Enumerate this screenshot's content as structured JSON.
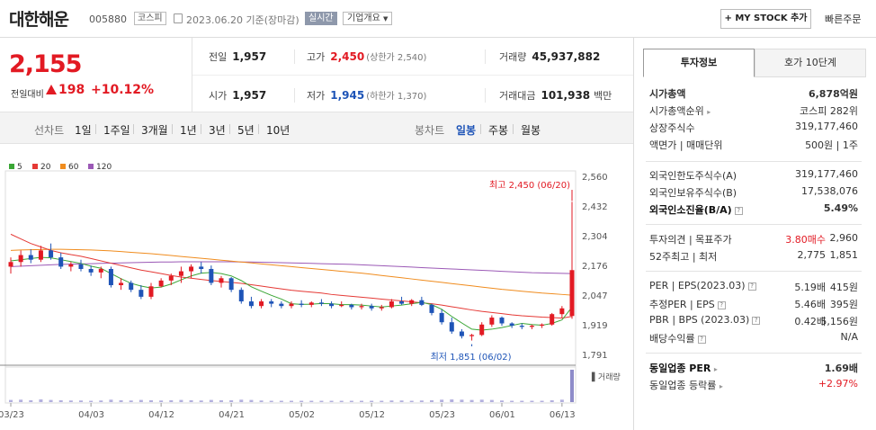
{
  "header": {
    "name": "대한해운",
    "code": "005880",
    "market": "코스피",
    "date": "2023.06.20 기준(장마감)",
    "realtime": "실시간",
    "company_info": "기업개요",
    "mystock": "+ MY STOCK 추가",
    "quick_order": "빠른주문"
  },
  "price": {
    "current": "2,155",
    "diff_label": "전일대비",
    "diff": "198",
    "diff_pct": "+10.12%"
  },
  "stats": {
    "prev_label": "전일",
    "prev": "1,957",
    "high_label": "고가",
    "high": "2,450",
    "upper": "(상한가 2,540)",
    "vol_label": "거래량",
    "vol": "45,937,882",
    "open_label": "시가",
    "open": "1,957",
    "low_label": "저가",
    "low": "1,945",
    "lower": "(하한가 1,370)",
    "amt_label": "거래대금",
    "amt": "101,938",
    "amt_unit": "백만"
  },
  "toolbar": {
    "line_label": "선차트",
    "line_items": [
      "1일",
      "1주일",
      "3개월",
      "1년",
      "3년",
      "5년",
      "10년"
    ],
    "candle_label": "봉차트",
    "candle_items": [
      "일봉",
      "주봉",
      "월봉"
    ]
  },
  "chart_data": {
    "type": "candlestick",
    "legend": [
      {
        "name": "5",
        "color": "#3aa635"
      },
      {
        "name": "20",
        "color": "#e53935"
      },
      {
        "name": "60",
        "color": "#f08c1e"
      },
      {
        "name": "120",
        "color": "#9b59b6"
      }
    ],
    "y_ticks": [
      "2,560",
      "2,432",
      "2,304",
      "2,176",
      "2,047",
      "1,919",
      "1,791"
    ],
    "ylim": [
      1791,
      2560
    ],
    "x_labels": [
      "03/23",
      "04/03",
      "04/12",
      "04/21",
      "05/02",
      "05/12",
      "05/23",
      "06/01",
      "06/13"
    ],
    "high_note": "최고 2,450 (06/20)",
    "low_note": "최저 1,851 (06/02)",
    "volume_label": "거래량",
    "candles": [
      [
        2170,
        2210,
        2140,
        2190
      ],
      [
        2190,
        2240,
        2170,
        2220
      ],
      [
        2220,
        2245,
        2185,
        2200
      ],
      [
        2200,
        2260,
        2190,
        2240
      ],
      [
        2240,
        2270,
        2200,
        2210
      ],
      [
        2210,
        2230,
        2160,
        2170
      ],
      [
        2170,
        2190,
        2150,
        2180
      ],
      [
        2180,
        2200,
        2150,
        2160
      ],
      [
        2160,
        2175,
        2130,
        2145
      ],
      [
        2145,
        2170,
        2120,
        2160
      ],
      [
        2160,
        2170,
        2080,
        2090
      ],
      [
        2090,
        2120,
        2070,
        2100
      ],
      [
        2100,
        2110,
        2060,
        2070
      ],
      [
        2070,
        2090,
        2030,
        2040
      ],
      [
        2040,
        2100,
        2030,
        2085
      ],
      [
        2085,
        2120,
        2080,
        2110
      ],
      [
        2110,
        2140,
        2090,
        2130
      ],
      [
        2130,
        2170,
        2100,
        2150
      ],
      [
        2150,
        2180,
        2120,
        2170
      ],
      [
        2170,
        2190,
        2140,
        2160
      ],
      [
        2160,
        2175,
        2090,
        2100
      ],
      [
        2100,
        2130,
        2080,
        2120
      ],
      [
        2120,
        2125,
        2060,
        2070
      ],
      [
        2070,
        2080,
        2010,
        2020
      ],
      [
        2020,
        2040,
        1990,
        2000
      ],
      [
        2000,
        2030,
        1990,
        2020
      ],
      [
        2020,
        2030,
        1995,
        2010
      ],
      [
        2010,
        2020,
        1990,
        2000
      ],
      [
        2000,
        2020,
        1990,
        2010
      ],
      [
        2010,
        2025,
        1995,
        2005
      ],
      [
        2005,
        2020,
        1995,
        2015
      ],
      [
        2015,
        2030,
        2000,
        2010
      ],
      [
        2010,
        2020,
        1990,
        2000
      ],
      [
        2000,
        2020,
        1995,
        2005
      ],
      [
        2005,
        2010,
        1985,
        1995
      ],
      [
        1995,
        2010,
        1985,
        2000
      ],
      [
        2000,
        2010,
        1980,
        1990
      ],
      [
        1990,
        2005,
        1980,
        1995
      ],
      [
        1995,
        2030,
        1990,
        2020
      ],
      [
        2020,
        2040,
        2005,
        2010
      ],
      [
        2010,
        2030,
        2000,
        2025
      ],
      [
        2025,
        2040,
        2000,
        2005
      ],
      [
        2005,
        2010,
        1960,
        1970
      ],
      [
        1970,
        1985,
        1920,
        1930
      ],
      [
        1930,
        1950,
        1880,
        1890
      ],
      [
        1890,
        1900,
        1860,
        1870
      ],
      [
        1870,
        1880,
        1851,
        1875
      ],
      [
        1875,
        1930,
        1870,
        1920
      ],
      [
        1920,
        1960,
        1910,
        1950
      ],
      [
        1950,
        1955,
        1915,
        1925
      ],
      [
        1925,
        1930,
        1905,
        1915
      ],
      [
        1915,
        1925,
        1900,
        1910
      ],
      [
        1910,
        1920,
        1900,
        1915
      ],
      [
        1915,
        1925,
        1905,
        1920
      ],
      [
        1920,
        1970,
        1915,
        1965
      ],
      [
        1965,
        2000,
        1950,
        1990
      ],
      [
        1957,
        2450,
        1945,
        2155
      ]
    ],
    "volumes": [
      8,
      9,
      7,
      10,
      8,
      7,
      6,
      6,
      5,
      6,
      9,
      7,
      6,
      8,
      7,
      6,
      7,
      8,
      7,
      6,
      8,
      7,
      7,
      9,
      8,
      6,
      5,
      5,
      5,
      5,
      5,
      5,
      5,
      5,
      5,
      5,
      5,
      5,
      6,
      6,
      5,
      6,
      7,
      9,
      10,
      9,
      8,
      9,
      8,
      6,
      5,
      5,
      5,
      5,
      7,
      9,
      120
    ],
    "ma5": [
      2195,
      2200,
      2205,
      2210,
      2208,
      2200,
      2192,
      2184,
      2172,
      2163,
      2140,
      2118,
      2098,
      2086,
      2078,
      2082,
      2095,
      2113,
      2130,
      2142,
      2145,
      2140,
      2130,
      2110,
      2083,
      2064,
      2046,
      2030,
      2010,
      2007,
      2008,
      2011,
      2010,
      2006,
      2006,
      2004,
      2000,
      1996,
      2000,
      2004,
      2010,
      2016,
      2006,
      1986,
      1955,
      1927,
      1900,
      1896,
      1900,
      1907,
      1916,
      1925,
      1920,
      1917,
      1925,
      1940,
      1995
    ],
    "ma20": [
      2310,
      2290,
      2270,
      2255,
      2240,
      2230,
      2222,
      2215,
      2205,
      2195,
      2185,
      2175,
      2165,
      2155,
      2148,
      2140,
      2132,
      2125,
      2120,
      2115,
      2110,
      2106,
      2102,
      2098,
      2092,
      2086,
      2080,
      2074,
      2068,
      2064,
      2060,
      2056,
      2050,
      2046,
      2042,
      2038,
      2034,
      2030,
      2026,
      2022,
      2018,
      2014,
      2010,
      2004,
      1997,
      1990,
      1983,
      1977,
      1972,
      1967,
      1962,
      1958,
      1955,
      1952,
      1950,
      1948,
      1955
    ],
    "ma60": [
      2240,
      2242,
      2243,
      2244,
      2245,
      2245,
      2244,
      2243,
      2242,
      2240,
      2238,
      2235,
      2232,
      2229,
      2226,
      2222,
      2218,
      2214,
      2210,
      2206,
      2202,
      2198,
      2194,
      2190,
      2186,
      2182,
      2178,
      2174,
      2170,
      2166,
      2162,
      2158,
      2154,
      2150,
      2146,
      2142,
      2137,
      2132,
      2127,
      2122,
      2117,
      2112,
      2107,
      2102,
      2097,
      2092,
      2087,
      2082,
      2077,
      2072,
      2068,
      2064,
      2060,
      2056,
      2053,
      2050,
      2047
    ],
    "ma120": [
      2170,
      2172,
      2174,
      2176,
      2178,
      2180,
      2181,
      2182,
      2183,
      2184,
      2185,
      2186,
      2187,
      2188,
      2189,
      2190,
      2190,
      2191,
      2191,
      2191,
      2191,
      2191,
      2191,
      2190,
      2190,
      2189,
      2188,
      2187,
      2186,
      2185,
      2184,
      2183,
      2182,
      2181,
      2180,
      2178,
      2176,
      2174,
      2172,
      2170,
      2168,
      2166,
      2164,
      2162,
      2160,
      2158,
      2156,
      2154,
      2152,
      2150,
      2148,
      2146,
      2144,
      2143,
      2142,
      2141,
      2140
    ]
  },
  "right_panel": {
    "tab_active": "투자정보",
    "tab_other": "호가 10단계",
    "rows1": [
      {
        "k": "시가총액",
        "v": "6,878억원",
        "bold": true
      },
      {
        "k": "시가총액순위",
        "v": "코스피 282위"
      },
      {
        "k": "상장주식수",
        "v": "319,177,460"
      },
      {
        "k": "액면가 | 매매단위",
        "v": "500원 | 1주"
      }
    ],
    "rows2": [
      {
        "k": "외국인한도주식수(A)",
        "v": "319,177,460"
      },
      {
        "k": "외국인보유주식수(B)",
        "v": "17,538,076"
      },
      {
        "k": "외국인소진율(B/A)",
        "v": "5.49%",
        "bold": true
      }
    ],
    "opinion_label": "투자의견 | 목표주가",
    "opinion": "3.80매수",
    "target": "2,960",
    "w52_label": "52주최고 | 최저",
    "w52_high": "2,775",
    "w52_low": "1,851",
    "per_label": "PER | EPS(2023.03)",
    "per": "5.19배",
    "eps": "415원",
    "est_label": "추정PER | EPS",
    "est_per": "5.46배",
    "est_eps": "395원",
    "pbr_label": "PBR | BPS (2023.03)",
    "pbr": "0.42배",
    "bps": "5,156원",
    "div_label": "배당수익률",
    "div": "N/A",
    "ind_per_label": "동일업종 PER",
    "ind_per": "1.69배",
    "ind_rate_label": "동일업종 등락률",
    "ind_rate": "+2.97%"
  }
}
